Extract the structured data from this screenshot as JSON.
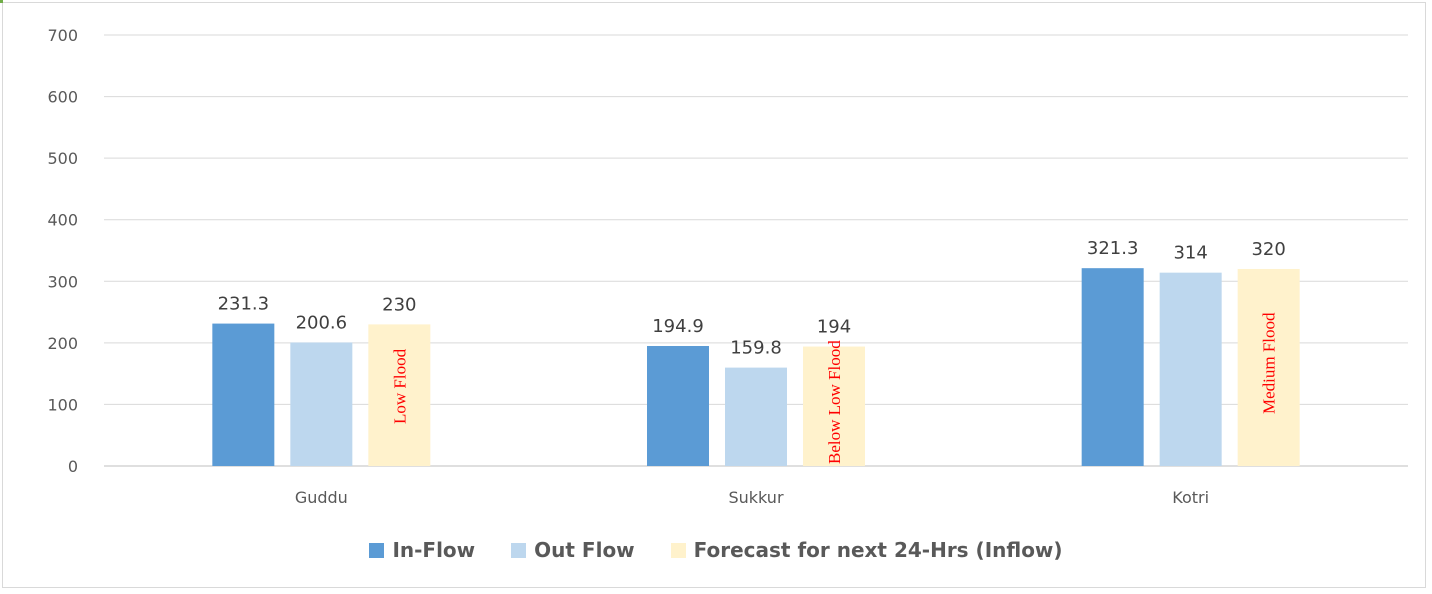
{
  "chart_data": {
    "type": "bar",
    "categories": [
      "Guddu",
      "Sukkur",
      "Kotri"
    ],
    "series": [
      {
        "name": "In-Flow",
        "values": [
          231.3,
          194.9,
          321.3
        ],
        "color": "#5b9bd5"
      },
      {
        "name": "Out Flow",
        "values": [
          200.6,
          159.8,
          314
        ],
        "color": "#bdd7ee"
      },
      {
        "name": "Forecast for next 24-Hrs (Inflow)",
        "values": [
          230,
          194,
          320
        ],
        "color": "#fff2cc"
      }
    ],
    "data_labels": [
      [
        "231.3",
        "200.6",
        "230"
      ],
      [
        "194.9",
        "159.8",
        "194"
      ],
      [
        "321.3",
        "314",
        "320"
      ]
    ],
    "annotations": [
      "Low Flood",
      "Below Low Flood",
      "Medium Flood"
    ],
    "annotation_color": "#ff0000",
    "yticks": [
      "0",
      "100",
      "200",
      "300",
      "400",
      "500",
      "600",
      "700"
    ],
    "ylim": [
      0,
      700
    ],
    "grid": true,
    "legend_position": "bottom",
    "title": "",
    "xlabel": "",
    "ylabel": ""
  }
}
